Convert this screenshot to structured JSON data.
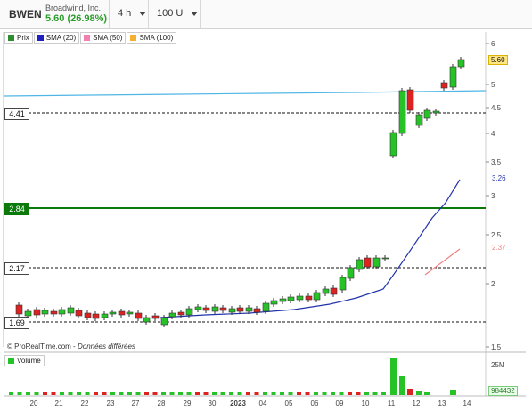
{
  "header": {
    "symbol": "BWEN",
    "company": "Broadwind, Inc.",
    "quote": "5.60 (26.98%)",
    "interval": "4 h",
    "units": "100 U"
  },
  "legend": [
    {
      "label": "Prix",
      "color": "#2e8b2e"
    },
    {
      "label": "SMA (20)",
      "color": "#2020c0"
    },
    {
      "label": "SMA (50)",
      "color": "#f080b0"
    },
    {
      "label": "SMA (100)",
      "color": "#f5b030"
    }
  ],
  "price_levels": {
    "l441": "4.41",
    "l284": "2.84",
    "l217": "2.17",
    "l169": "1.69"
  },
  "right_axis": [
    "6",
    "5",
    "4.5",
    "4",
    "3.5",
    "3",
    "2.5",
    "2",
    "1.5"
  ],
  "last_price": "5.60",
  "sma20_value": "3.26",
  "sma50_value": "2.37",
  "copyright": "© ProRealTime.com -",
  "delayed": "Données différées",
  "volume": {
    "label": "Volume",
    "axis_top": "25M",
    "last_value": "984432"
  },
  "x_axis": [
    "20",
    "21",
    "22",
    "23",
    "27",
    "28",
    "29",
    "30",
    "2023",
    "04",
    "05",
    "06",
    "09",
    "10",
    "11",
    "12",
    "13",
    "14"
  ],
  "colors": {
    "up": "#27c227",
    "down": "#dd2222",
    "sma20": "#2233aa",
    "sma100": "#4fb6e6"
  }
}
